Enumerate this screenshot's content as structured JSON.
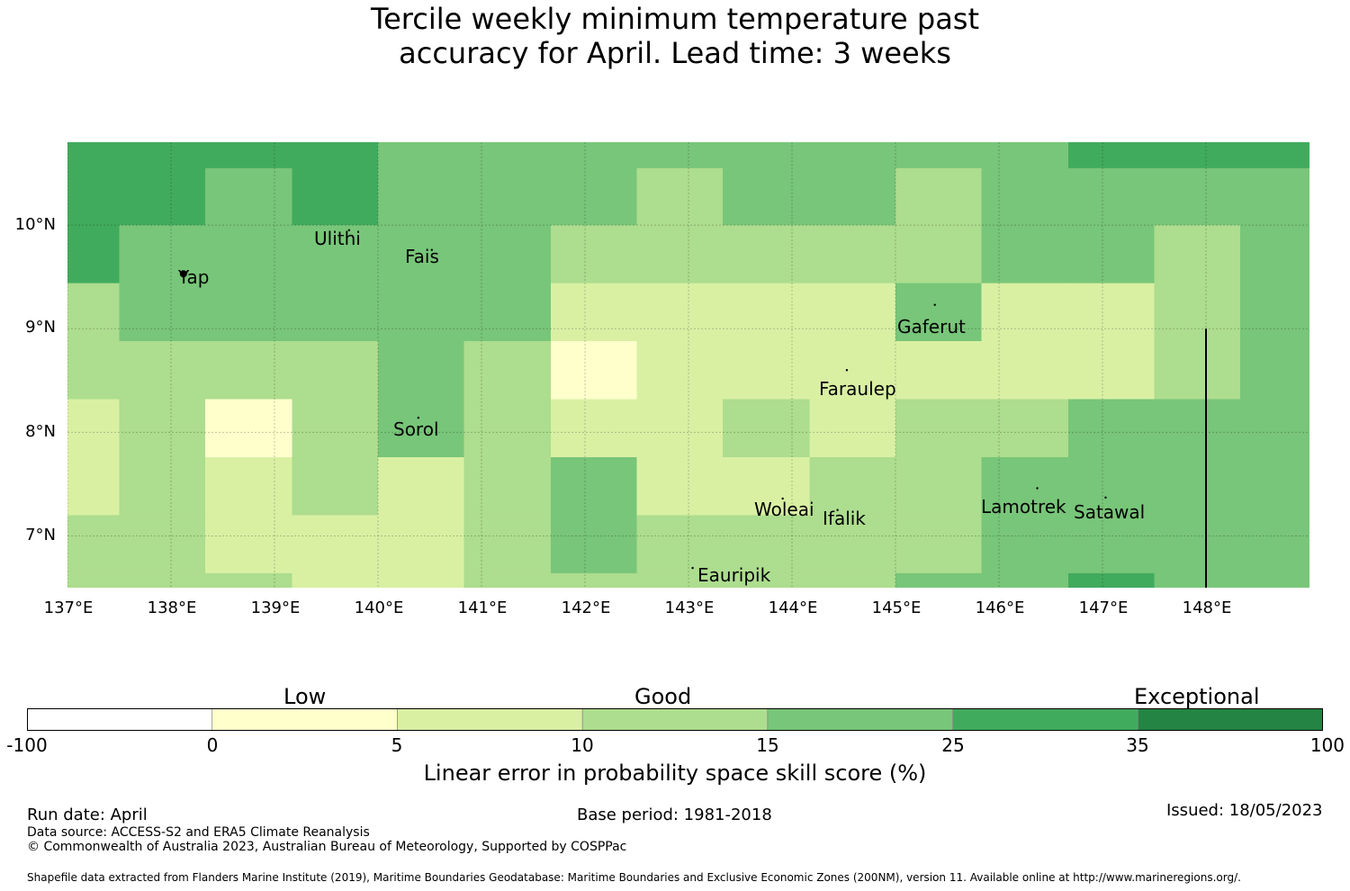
{
  "title": {
    "line1": "Tercile weekly minimum temperature past",
    "line2": "accuracy for April. Lead time: 3 weeks"
  },
  "map": {
    "lon_labels": [
      "137°E",
      "138°E",
      "139°E",
      "140°E",
      "141°E",
      "142°E",
      "143°E",
      "144°E",
      "145°E",
      "146°E",
      "147°E",
      "148°E"
    ],
    "lat_labels": [
      "10°N",
      "9°N",
      "8°N",
      "7°N"
    ],
    "extent": {
      "lon_min": 137.0,
      "lon_max": 149.0,
      "lat_min": 6.5,
      "lat_max": 10.8
    },
    "grid_lons": [
      137,
      138,
      139,
      140,
      141,
      142,
      143,
      144,
      145,
      146,
      147,
      148
    ],
    "grid_lats": [
      10,
      9,
      8,
      7
    ],
    "boundary_line": {
      "lon": 148.0,
      "lat_from": 6.5,
      "lat_to": 9.0
    },
    "cell_columns_lon": [
      137.0,
      137.5,
      138.33,
      139.17,
      140.0,
      140.83,
      141.67,
      142.5,
      143.33,
      144.17,
      145.0,
      145.83,
      146.67,
      147.5,
      148.33,
      149.0
    ],
    "cell_rows_lat": [
      10.8,
      10.55,
      10.0,
      9.44,
      8.88,
      8.32,
      7.76,
      7.2,
      6.64,
      6.5
    ],
    "cell_classes": [
      [
        5,
        5,
        5,
        5,
        4,
        4,
        4,
        4,
        4,
        4,
        4,
        4,
        5,
        5,
        5
      ],
      [
        5,
        5,
        4,
        5,
        4,
        4,
        4,
        3,
        4,
        4,
        3,
        4,
        4,
        4,
        4
      ],
      [
        5,
        4,
        4,
        4,
        4,
        4,
        3,
        3,
        3,
        3,
        3,
        4,
        4,
        3,
        4
      ],
      [
        3,
        4,
        4,
        4,
        4,
        4,
        2,
        2,
        2,
        2,
        4,
        2,
        2,
        3,
        4
      ],
      [
        3,
        3,
        3,
        3,
        4,
        3,
        1,
        2,
        2,
        2,
        2,
        2,
        2,
        3,
        4
      ],
      [
        2,
        3,
        1,
        3,
        4,
        3,
        2,
        2,
        3,
        2,
        3,
        3,
        4,
        4,
        4
      ],
      [
        2,
        3,
        2,
        3,
        2,
        3,
        4,
        2,
        2,
        3,
        3,
        4,
        4,
        4,
        4
      ],
      [
        3,
        3,
        2,
        2,
        2,
        3,
        4,
        3,
        3,
        3,
        3,
        4,
        4,
        4,
        4
      ],
      [
        3,
        3,
        3,
        2,
        2,
        3,
        3,
        3,
        3,
        3,
        4,
        4,
        5,
        4,
        4
      ]
    ],
    "places": [
      {
        "name": "Ulithi",
        "lon": 139.72,
        "lat": 9.95
      },
      {
        "name": "Fais",
        "lon": 140.52,
        "lat": 9.76
      },
      {
        "name": "Yap",
        "lon": 138.12,
        "lat": 9.53
      },
      {
        "name": "Gaferut",
        "lon": 145.38,
        "lat": 9.23
      },
      {
        "name": "Faraulep",
        "lon": 144.53,
        "lat": 8.6
      },
      {
        "name": "Sorol",
        "lon": 140.39,
        "lat": 8.14
      },
      {
        "name": "Woleai",
        "lon": 143.91,
        "lat": 7.36
      },
      {
        "name": "Ifalik",
        "lon": 144.44,
        "lat": 7.25
      },
      {
        "name": "Lamotrek",
        "lon": 146.37,
        "lat": 7.46
      },
      {
        "name": "Satawal",
        "lon": 147.03,
        "lat": 7.37
      },
      {
        "name": "Eauripik",
        "lon": 143.04,
        "lat": 6.69
      }
    ]
  },
  "legend": {
    "categories": [
      "Low",
      "Good",
      "Exceptional"
    ],
    "ticks": [
      "-100",
      "0",
      "5",
      "10",
      "15",
      "25",
      "35",
      "100"
    ],
    "colors": [
      "#ffffff",
      "#ffffcc",
      "#d9f0a3",
      "#addd8e",
      "#78c679",
      "#41ab5d",
      "#238443"
    ],
    "title": "Linear error in probability space skill score (%)"
  },
  "footer": {
    "run_date": "Run date: April",
    "base_period": "Base period: 1981-2018",
    "issued": "Issued: 18/05/2023",
    "data_source": "Data source: ACCESS-S2 and ERA5 Climate Reanalysis",
    "copyright": "© Commonwealth of Australia 2023, Australian Bureau of Meteorology, Supported by COSPPac",
    "shapefile": "Shapefile data extracted from Flanders Marine Institute (2019), Maritime Boundaries Geodatabase: Maritime Boundaries and Exclusive Economic Zones (200NM), version 11. Available online at http://www.marineregions.org/."
  }
}
